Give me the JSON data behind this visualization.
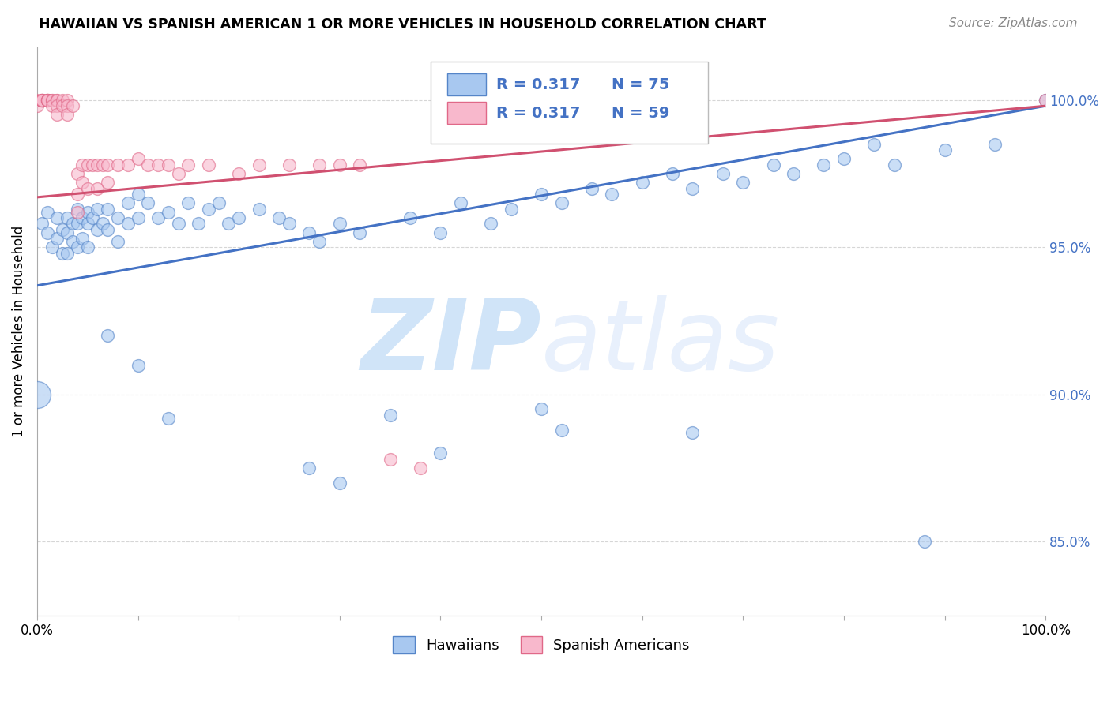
{
  "title": "HAWAIIAN VS SPANISH AMERICAN 1 OR MORE VEHICLES IN HOUSEHOLD CORRELATION CHART",
  "source": "Source: ZipAtlas.com",
  "ylabel": "1 or more Vehicles in Household",
  "legend_label_blue": "Hawaiians",
  "legend_label_pink": "Spanish Americans",
  "R_blue": "R = 0.317",
  "N_blue": "N = 75",
  "R_pink": "R = 0.317",
  "N_pink": "N = 59",
  "ytick_labels": [
    "85.0%",
    "90.0%",
    "95.0%",
    "100.0%"
  ],
  "ytick_values": [
    0.85,
    0.9,
    0.95,
    1.0
  ],
  "xlim": [
    0.0,
    1.0
  ],
  "ylim": [
    0.825,
    1.018
  ],
  "blue_color": "#A8C8F0",
  "pink_color": "#F8B8CC",
  "blue_edge_color": "#5585C8",
  "pink_edge_color": "#E06888",
  "blue_line_color": "#4472C4",
  "pink_line_color": "#D05070",
  "ytick_color": "#4472C4",
  "watermark_color": "#D0E4F8",
  "background_color": "#FFFFFF",
  "grid_color": "#CCCCCC",
  "hawaiian_x": [
    0.005,
    0.01,
    0.01,
    0.015,
    0.02,
    0.02,
    0.025,
    0.025,
    0.03,
    0.03,
    0.03,
    0.035,
    0.035,
    0.04,
    0.04,
    0.04,
    0.045,
    0.045,
    0.05,
    0.05,
    0.05,
    0.055,
    0.06,
    0.06,
    0.065,
    0.07,
    0.07,
    0.08,
    0.08,
    0.09,
    0.09,
    0.1,
    0.1,
    0.11,
    0.12,
    0.13,
    0.14,
    0.15,
    0.16,
    0.17,
    0.18,
    0.19,
    0.2,
    0.22,
    0.24,
    0.25,
    0.27,
    0.28,
    0.3,
    0.32,
    0.35,
    0.37,
    0.4,
    0.42,
    0.45,
    0.47,
    0.5,
    0.52,
    0.55,
    0.57,
    0.6,
    0.63,
    0.65,
    0.68,
    0.7,
    0.73,
    0.75,
    0.78,
    0.8,
    0.83,
    0.85,
    0.88,
    0.9,
    0.95,
    1.0
  ],
  "hawaiian_y": [
    0.958,
    0.962,
    0.955,
    0.95,
    0.96,
    0.953,
    0.956,
    0.948,
    0.96,
    0.955,
    0.948,
    0.958,
    0.952,
    0.963,
    0.958,
    0.95,
    0.96,
    0.953,
    0.962,
    0.958,
    0.95,
    0.96,
    0.963,
    0.956,
    0.958,
    0.963,
    0.956,
    0.96,
    0.952,
    0.965,
    0.958,
    0.968,
    0.96,
    0.965,
    0.96,
    0.962,
    0.958,
    0.965,
    0.958,
    0.963,
    0.965,
    0.958,
    0.96,
    0.963,
    0.96,
    0.958,
    0.955,
    0.952,
    0.958,
    0.955,
    0.893,
    0.96,
    0.955,
    0.965,
    0.958,
    0.963,
    0.968,
    0.965,
    0.97,
    0.968,
    0.972,
    0.975,
    0.97,
    0.975,
    0.972,
    0.978,
    0.975,
    0.978,
    0.98,
    0.985,
    0.978,
    0.85,
    0.983,
    0.985,
    1.0
  ],
  "hawaiian_x_large": [
    0.0
  ],
  "hawaiian_y_large": [
    0.9
  ],
  "hawaiian_x_low": [
    0.07,
    0.1,
    0.13,
    0.27,
    0.3,
    0.4,
    0.5,
    0.52,
    0.65
  ],
  "hawaiian_y_low": [
    0.92,
    0.91,
    0.892,
    0.875,
    0.87,
    0.88,
    0.895,
    0.888,
    0.887
  ],
  "spanish_x": [
    0.0,
    0.0,
    0.005,
    0.005,
    0.005,
    0.005,
    0.005,
    0.005,
    0.01,
    0.01,
    0.01,
    0.01,
    0.01,
    0.015,
    0.015,
    0.015,
    0.02,
    0.02,
    0.02,
    0.02,
    0.025,
    0.025,
    0.03,
    0.03,
    0.03,
    0.035,
    0.04,
    0.04,
    0.04,
    0.045,
    0.045,
    0.05,
    0.05,
    0.055,
    0.06,
    0.06,
    0.065,
    0.07,
    0.07,
    0.08,
    0.09,
    0.1,
    0.11,
    0.12,
    0.13,
    0.14,
    0.15,
    0.17,
    0.2,
    0.22,
    0.25,
    0.28,
    0.3,
    0.32,
    0.35,
    0.38,
    0.42,
    0.5,
    1.0
  ],
  "spanish_y": [
    1.0,
    0.998,
    1.0,
    1.0,
    1.0,
    1.0,
    1.0,
    1.0,
    1.0,
    1.0,
    1.0,
    1.0,
    1.0,
    1.0,
    1.0,
    0.998,
    1.0,
    1.0,
    0.998,
    0.995,
    1.0,
    0.998,
    1.0,
    0.998,
    0.995,
    0.998,
    0.975,
    0.968,
    0.962,
    0.978,
    0.972,
    0.978,
    0.97,
    0.978,
    0.978,
    0.97,
    0.978,
    0.978,
    0.972,
    0.978,
    0.978,
    0.98,
    0.978,
    0.978,
    0.978,
    0.975,
    0.978,
    0.978,
    0.975,
    0.978,
    0.978,
    0.978,
    0.978,
    0.978,
    0.878,
    0.875,
    0.998,
    0.998,
    1.0
  ],
  "blue_line_x0": 0.0,
  "blue_line_y0": 0.937,
  "blue_line_x1": 1.0,
  "blue_line_y1": 0.998,
  "pink_line_x0": 0.0,
  "pink_line_y0": 0.967,
  "pink_line_x1": 1.0,
  "pink_line_y1": 0.998
}
